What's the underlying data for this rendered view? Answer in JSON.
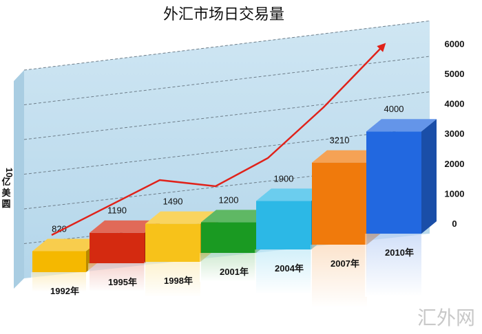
{
  "chart_data": {
    "type": "bar",
    "title": "外汇市场日交易量",
    "ylabel": "10亿美圆",
    "categories": [
      "1992年",
      "1995年",
      "1998年",
      "2001年",
      "2004年",
      "2007年",
      "2010年"
    ],
    "values": [
      820,
      1190,
      1490,
      1200,
      1900,
      3210,
      4000
    ],
    "value_labels": [
      "820",
      "1190",
      "1490",
      "1200",
      "1900",
      "3210",
      "4000"
    ],
    "yticks": [
      "0",
      "1000",
      "2000",
      "3000",
      "4000",
      "5000",
      "6000"
    ],
    "ylim": [
      0,
      6000
    ],
    "grid": true,
    "trend_arrow": true,
    "bar_colors": [
      "#f5b800",
      "#d42a10",
      "#f7c21a",
      "#1a9a22",
      "#2cb8e6",
      "#f07a0c",
      "#2268e0"
    ]
  },
  "watermark": "汇外网"
}
